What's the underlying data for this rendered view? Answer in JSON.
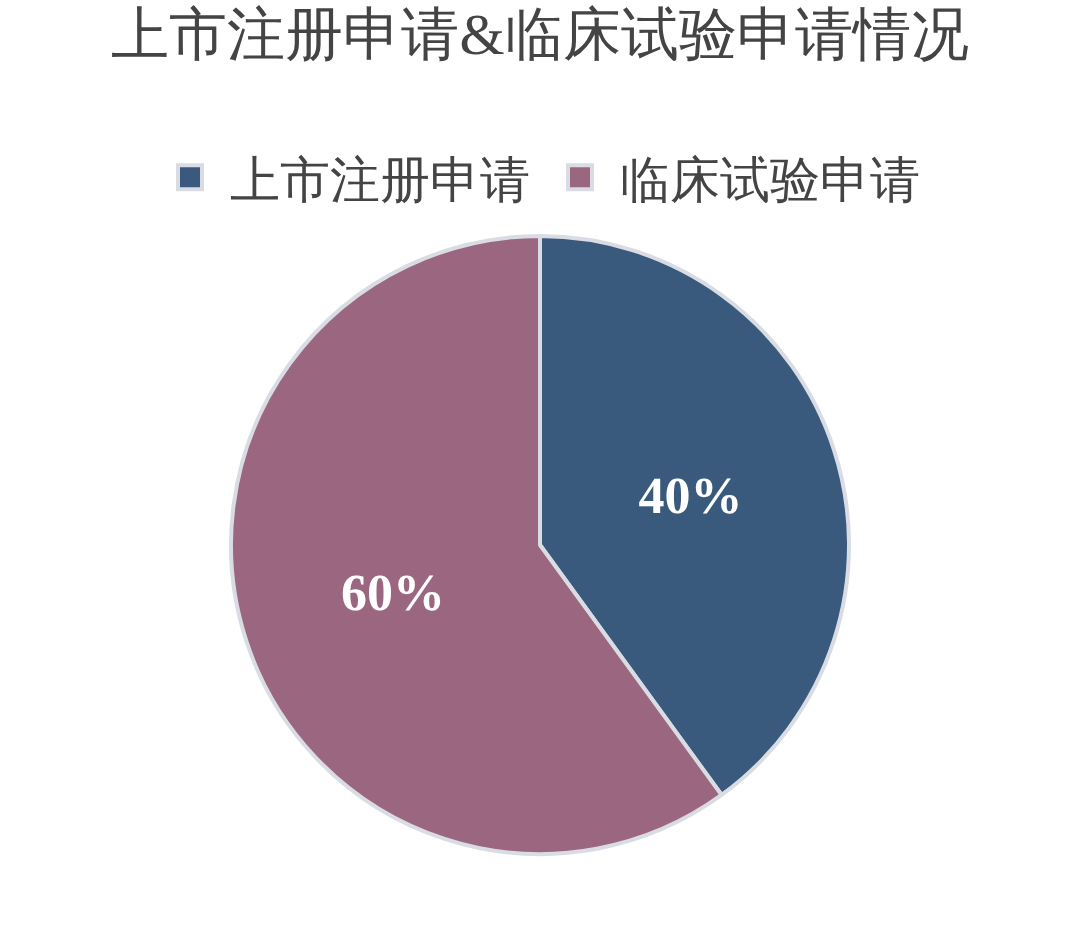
{
  "chart_data": {
    "type": "pie",
    "title": "上市注册申请&临床试验申请情况",
    "categories": [
      "上市注册申请",
      "临床试验申请"
    ],
    "values": [
      40,
      60
    ],
    "colors": [
      "#395a7d",
      "#9a6680"
    ],
    "value_labels": [
      "40%",
      "60%"
    ],
    "legend": "top"
  }
}
